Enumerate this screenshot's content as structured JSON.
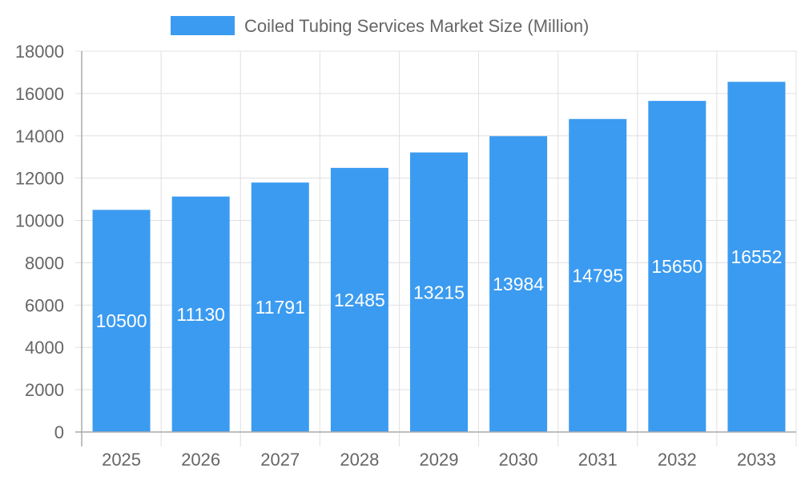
{
  "chart_data": {
    "type": "bar",
    "title": "",
    "xlabel": "",
    "ylabel": "",
    "categories": [
      "2025",
      "2026",
      "2027",
      "2028",
      "2029",
      "2030",
      "2031",
      "2032",
      "2033"
    ],
    "series": [
      {
        "name": "Coiled Tubing Services Market Size (Million)",
        "values": [
          10500,
          11130,
          11791,
          12485,
          13215,
          13984,
          14795,
          15650,
          16552
        ]
      }
    ],
    "ylim": [
      0,
      18000
    ],
    "yticks": [
      0,
      2000,
      4000,
      6000,
      8000,
      10000,
      12000,
      14000,
      16000,
      18000
    ],
    "grid": true,
    "legend": "top-center",
    "data_labels": true,
    "colors": {
      "bar": "#3b9bf0",
      "grid": "#e0e0e0",
      "axis": "#aaaaaa",
      "text": "#666666",
      "label": "#ffffff"
    }
  }
}
